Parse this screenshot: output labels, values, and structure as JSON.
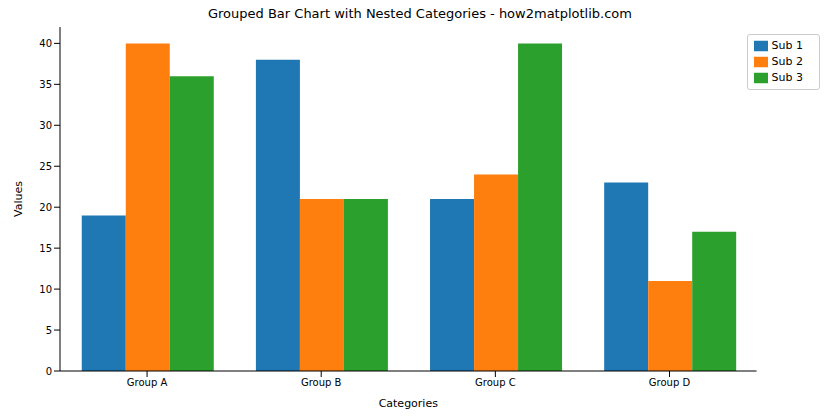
{
  "chart_data": {
    "type": "bar",
    "title": "Grouped Bar Chart with Nested Categories - how2matplotlib.com",
    "x_label": "Categories",
    "y_label": "Values",
    "categories": [
      "Group A",
      "Group B",
      "Group C",
      "Group D"
    ],
    "series": [
      {
        "name": "Sub 1",
        "color": "#1f77b4",
        "values": [
          19,
          38,
          21,
          23
        ]
      },
      {
        "name": "Sub 2",
        "color": "#ff7f0e",
        "values": [
          40,
          21,
          24,
          11
        ]
      },
      {
        "name": "Sub 3",
        "color": "#2ca02c",
        "values": [
          36,
          21,
          40,
          17
        ]
      }
    ],
    "ylim": [
      0,
      42
    ],
    "yticks": [
      0,
      5,
      10,
      15,
      20,
      25,
      30,
      35,
      40
    ],
    "grid": false,
    "legend": "upper right"
  }
}
